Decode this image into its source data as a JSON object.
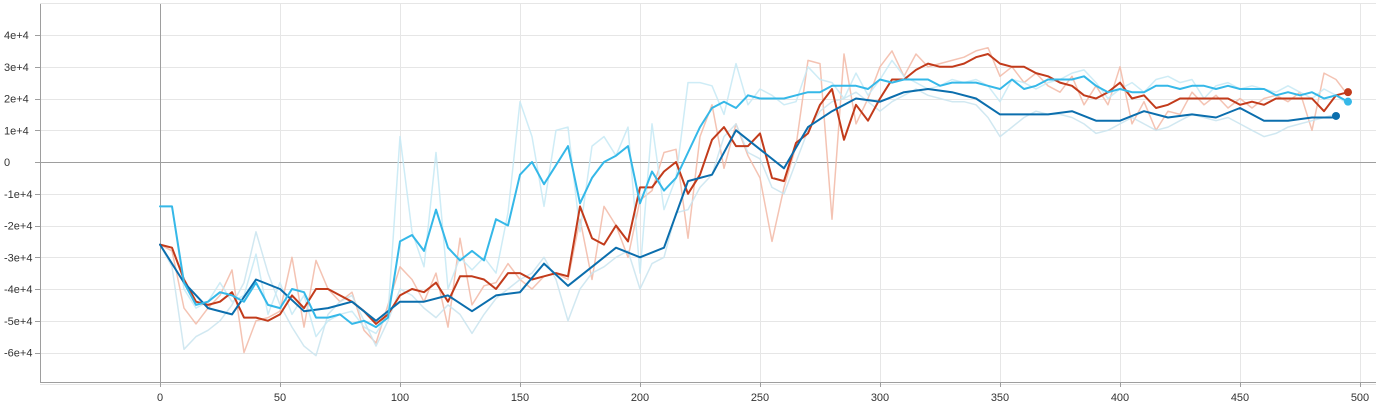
{
  "chart_data": {
    "type": "line",
    "xlim": [
      -50,
      508
    ],
    "ylim": [
      -70000,
      50000
    ],
    "grid": true,
    "legend": "none",
    "x_ticks": [
      0,
      50,
      100,
      150,
      200,
      250,
      300,
      350,
      400,
      450,
      500
    ],
    "x_tick_labels": [
      "0",
      "50",
      "100",
      "150",
      "200",
      "250",
      "300",
      "350",
      "400",
      "450",
      "500"
    ],
    "y_ticks": [
      40000,
      30000,
      20000,
      10000,
      0,
      -10000,
      -20000,
      -30000,
      -40000,
      -50000,
      -60000
    ],
    "y_tick_labels": [
      "4e+4",
      "3e+4",
      "2e+4",
      "1e+4",
      "0",
      "-1e+4",
      "-2e+4",
      "-3e+4",
      "-4e+4",
      "-5e+4",
      "-6e+4"
    ],
    "series": [
      {
        "color": "#f2b8a6",
        "role": "raw",
        "x": [
          0,
          5,
          10,
          15,
          20,
          25,
          30,
          35,
          40,
          45,
          50,
          55,
          60,
          65,
          70,
          75,
          80,
          85,
          90,
          95,
          100,
          105,
          110,
          115,
          120,
          125,
          130,
          135,
          140,
          145,
          150,
          155,
          160,
          165,
          170,
          175,
          180,
          185,
          190,
          195,
          200,
          205,
          210,
          215,
          220,
          225,
          230,
          235,
          240,
          245,
          250,
          255,
          260,
          265,
          270,
          275,
          280,
          285,
          290,
          295,
          300,
          305,
          310,
          315,
          320,
          325,
          330,
          335,
          340,
          345,
          350,
          355,
          360,
          365,
          370,
          375,
          380,
          385,
          390,
          395,
          400,
          405,
          410,
          415,
          420,
          425,
          430,
          435,
          440,
          445,
          450,
          455,
          460,
          465,
          470,
          475,
          480,
          485,
          490,
          495
        ],
        "y": [
          -26000,
          -28000,
          -46000,
          -51000,
          -46000,
          -42000,
          -34000,
          -60000,
          -50000,
          -49000,
          -47000,
          -30000,
          -52000,
          -31000,
          -40000,
          -44000,
          -41000,
          -53000,
          -57000,
          -45000,
          -33000,
          -37000,
          -44000,
          -35000,
          -52000,
          -24000,
          -45000,
          -39000,
          -38000,
          -32000,
          -37000,
          -40000,
          -36000,
          -35000,
          -37000,
          -18000,
          -37000,
          -14000,
          -20000,
          -30000,
          -12000,
          -9000,
          3000,
          4000,
          -24000,
          8000,
          18000,
          -2000,
          12000,
          2000,
          -5000,
          -25000,
          -8000,
          5000,
          32000,
          31000,
          -18000,
          34000,
          12000,
          20000,
          30000,
          35000,
          27000,
          34000,
          30000,
          31000,
          32000,
          33000,
          35000,
          36000,
          27000,
          30000,
          25000,
          28000,
          24000,
          22000,
          27000,
          18000,
          24000,
          18000,
          30000,
          12000,
          19000,
          10000,
          16000,
          15000,
          22000,
          18000,
          21000,
          17000,
          20000,
          17000,
          20000,
          21000,
          19000,
          22000,
          10000,
          28000,
          26000,
          21000
        ]
      },
      {
        "color": "#c9e4ef",
        "role": "raw",
        "x": [
          0,
          5,
          10,
          15,
          20,
          25,
          30,
          35,
          40,
          45,
          50,
          55,
          60,
          65,
          70,
          75,
          80,
          85,
          90,
          95,
          100,
          105,
          110,
          115,
          120,
          125,
          130,
          135,
          140,
          145,
          150,
          155,
          160,
          165,
          170,
          175,
          180,
          185,
          190,
          195,
          200,
          205,
          210,
          215,
          220,
          225,
          230,
          235,
          240,
          245,
          250,
          255,
          260,
          265,
          270,
          275,
          280,
          285,
          290,
          295,
          300,
          305,
          310,
          315,
          320,
          325,
          330,
          335,
          340,
          345,
          350,
          355,
          360,
          365,
          370,
          375,
          380,
          385,
          390,
          395,
          400,
          405,
          410,
          415,
          420,
          425,
          430,
          435,
          440,
          445,
          450,
          455,
          460,
          465,
          470,
          475,
          480,
          485,
          490
        ],
        "y": [
          -26000,
          -33000,
          -59000,
          -55000,
          -53000,
          -50000,
          -45000,
          -38000,
          -22000,
          -35000,
          -45000,
          -52000,
          -58000,
          -61000,
          -48000,
          -44000,
          -42000,
          -50000,
          -58000,
          -50000,
          -40000,
          -42000,
          -46000,
          -49000,
          -45000,
          -48000,
          -54000,
          -48000,
          -43000,
          -40000,
          -37000,
          -35000,
          -30000,
          -37000,
          -50000,
          -40000,
          -35000,
          -33000,
          -30000,
          -28000,
          -40000,
          -32000,
          -30000,
          -16000,
          -15000,
          -8000,
          -4000,
          8000,
          12000,
          3000,
          1000,
          -8000,
          -10000,
          0,
          10000,
          16000,
          19000,
          20000,
          22000,
          19000,
          16000,
          19000,
          21000,
          23000,
          21000,
          20000,
          19000,
          19000,
          18000,
          14000,
          8000,
          11000,
          14000,
          16000,
          15000,
          15000,
          14000,
          12000,
          9000,
          10000,
          12000,
          14000,
          12000,
          10000,
          11000,
          13000,
          15000,
          14000,
          13000,
          14000,
          12000,
          10000,
          8000,
          9000,
          11000,
          12000,
          13000,
          14000,
          15000
        ]
      },
      {
        "color": "#c6e9f5",
        "role": "raw",
        "x": [
          0,
          5,
          10,
          15,
          20,
          25,
          30,
          35,
          40,
          45,
          50,
          55,
          60,
          65,
          70,
          75,
          80,
          85,
          90,
          95,
          100,
          105,
          110,
          115,
          120,
          125,
          130,
          135,
          140,
          145,
          150,
          155,
          160,
          165,
          170,
          175,
          180,
          185,
          190,
          195,
          200,
          205,
          210,
          215,
          220,
          225,
          230,
          235,
          240,
          245,
          250,
          255,
          260,
          265,
          270,
          275,
          280,
          285,
          290,
          295,
          300,
          305,
          310,
          315,
          320,
          325,
          330,
          335,
          340,
          345,
          350,
          355,
          360,
          365,
          370,
          375,
          380,
          385,
          390,
          395,
          400,
          405,
          410,
          415,
          420,
          425,
          430,
          435,
          440,
          445,
          450,
          455,
          460,
          465,
          470,
          475,
          480,
          485,
          490,
          495
        ],
        "y": [
          -14000,
          -14000,
          -40000,
          -46000,
          -44000,
          -38000,
          -44000,
          -42000,
          -29000,
          -48000,
          -38000,
          -48000,
          -42000,
          -55000,
          -50000,
          -48000,
          -47000,
          -52000,
          -54000,
          -48000,
          8000,
          -22000,
          -33000,
          3000,
          -40000,
          -30000,
          -34000,
          -30000,
          -35000,
          -16000,
          19000,
          8000,
          -14000,
          10000,
          11000,
          -22000,
          5000,
          8000,
          2000,
          11000,
          -35000,
          12000,
          -15000,
          -5000,
          25000,
          25000,
          24000,
          15000,
          31000,
          18000,
          23000,
          21000,
          18000,
          19000,
          30000,
          26000,
          25000,
          20000,
          28000,
          21000,
          26000,
          32000,
          27000,
          25000,
          23000,
          24000,
          26000,
          25000,
          26000,
          24000,
          19000,
          26000,
          25000,
          23000,
          25000,
          26000,
          28000,
          29000,
          25000,
          20000,
          23000,
          25000,
          22000,
          26000,
          27000,
          25000,
          26000,
          20000,
          24000,
          25000,
          23000,
          24000,
          23000,
          22000,
          24000,
          22000,
          20000,
          23000,
          21000,
          18000
        ]
      },
      {
        "color": "#c23b1b",
        "role": "smoothed",
        "x": [
          0,
          5,
          10,
          15,
          20,
          25,
          30,
          35,
          40,
          45,
          50,
          55,
          60,
          65,
          70,
          75,
          80,
          85,
          90,
          95,
          100,
          105,
          110,
          115,
          120,
          125,
          130,
          135,
          140,
          145,
          150,
          155,
          160,
          165,
          170,
          175,
          180,
          185,
          190,
          195,
          200,
          205,
          210,
          215,
          220,
          225,
          230,
          235,
          240,
          245,
          250,
          255,
          260,
          265,
          270,
          275,
          280,
          285,
          290,
          295,
          300,
          305,
          310,
          315,
          320,
          325,
          330,
          335,
          340,
          345,
          350,
          355,
          360,
          365,
          370,
          375,
          380,
          385,
          390,
          395,
          400,
          405,
          410,
          415,
          420,
          425,
          430,
          435,
          440,
          445,
          450,
          455,
          460,
          465,
          470,
          475,
          480,
          485,
          490,
          495
        ],
        "y": [
          -26000,
          -27000,
          -37000,
          -44000,
          -45000,
          -44000,
          -41000,
          -49000,
          -49000,
          -50000,
          -48000,
          -42000,
          -46000,
          -40000,
          -40000,
          -42000,
          -44000,
          -47000,
          -51000,
          -48000,
          -42000,
          -40000,
          -41000,
          -38000,
          -44000,
          -36000,
          -36000,
          -37000,
          -40000,
          -35000,
          -35000,
          -37000,
          -36000,
          -35000,
          -36000,
          -14000,
          -24000,
          -26000,
          -20000,
          -25000,
          -8000,
          -8000,
          -3000,
          0,
          -10000,
          -4000,
          7000,
          11000,
          5000,
          5000,
          9000,
          -5000,
          -6000,
          6000,
          9000,
          18000,
          23000,
          7000,
          18000,
          13000,
          20000,
          26000,
          26000,
          29000,
          31000,
          30000,
          30000,
          31000,
          33000,
          34000,
          31000,
          30000,
          30000,
          28000,
          27000,
          25000,
          24000,
          21000,
          20000,
          22000,
          25000,
          20000,
          21000,
          17000,
          18000,
          20000,
          20000,
          20000,
          20000,
          20000,
          18000,
          19000,
          18000,
          20000,
          20000,
          20000,
          20000,
          16000,
          21000,
          22000
        ]
      },
      {
        "color": "#0b6ead",
        "role": "smoothed",
        "x": [
          0,
          10,
          20,
          30,
          40,
          50,
          60,
          70,
          80,
          90,
          100,
          110,
          120,
          130,
          140,
          150,
          160,
          170,
          180,
          190,
          200,
          210,
          220,
          230,
          240,
          250,
          260,
          270,
          280,
          290,
          300,
          310,
          320,
          330,
          340,
          350,
          360,
          370,
          380,
          390,
          400,
          410,
          420,
          430,
          440,
          450,
          460,
          470,
          480,
          490
        ],
        "y": [
          -26000,
          -38000,
          -46000,
          -48000,
          -37000,
          -40000,
          -47000,
          -46000,
          -44000,
          -50000,
          -44000,
          -44000,
          -42000,
          -47000,
          -42000,
          -41000,
          -32000,
          -39000,
          -33000,
          -27000,
          -30000,
          -27000,
          -6000,
          -4000,
          10000,
          4000,
          -2000,
          11000,
          16000,
          20000,
          19000,
          22000,
          23000,
          22000,
          20000,
          15000,
          15000,
          15000,
          16000,
          13000,
          13000,
          16000,
          14000,
          15000,
          14000,
          17000,
          13000,
          13000,
          14000,
          14000
        ]
      },
      {
        "color": "#35b8e8",
        "role": "smoothed",
        "x": [
          0,
          5,
          10,
          15,
          20,
          25,
          30,
          35,
          40,
          45,
          50,
          55,
          60,
          65,
          70,
          75,
          80,
          85,
          90,
          95,
          100,
          105,
          110,
          115,
          120,
          125,
          130,
          135,
          140,
          145,
          150,
          155,
          160,
          165,
          170,
          175,
          180,
          185,
          190,
          195,
          200,
          205,
          210,
          215,
          220,
          225,
          230,
          235,
          240,
          245,
          250,
          255,
          260,
          265,
          270,
          275,
          280,
          285,
          290,
          295,
          300,
          305,
          310,
          315,
          320,
          325,
          330,
          335,
          340,
          345,
          350,
          355,
          360,
          365,
          370,
          375,
          380,
          385,
          390,
          395,
          400,
          405,
          410,
          415,
          420,
          425,
          430,
          435,
          440,
          445,
          450,
          455,
          460,
          465,
          470,
          475,
          480,
          485,
          490,
          495
        ],
        "y": [
          -14000,
          -14000,
          -38000,
          -45000,
          -44000,
          -41000,
          -42000,
          -44000,
          -38000,
          -45000,
          -46000,
          -40000,
          -41000,
          -49000,
          -49000,
          -48000,
          -51000,
          -50000,
          -52000,
          -49000,
          -25000,
          -23000,
          -28000,
          -15000,
          -27000,
          -31000,
          -28000,
          -31000,
          -18000,
          -20000,
          -4000,
          0,
          -7000,
          -1000,
          5000,
          -13000,
          -5000,
          0,
          2000,
          5000,
          -13000,
          -3000,
          -9000,
          -5000,
          3000,
          11000,
          17000,
          19000,
          17000,
          21000,
          20000,
          20000,
          20000,
          21000,
          22000,
          22000,
          24000,
          24000,
          24000,
          23000,
          26000,
          25000,
          26000,
          26000,
          26000,
          24000,
          25000,
          25000,
          25000,
          24000,
          23000,
          26000,
          23000,
          24000,
          26000,
          26000,
          26000,
          27000,
          24000,
          22000,
          23000,
          22000,
          22000,
          24000,
          24000,
          23000,
          24000,
          24000,
          23000,
          24000,
          23000,
          23000,
          23000,
          21000,
          22000,
          21000,
          22000,
          20000,
          21000,
          19000
        ]
      }
    ],
    "end_markers": [
      {
        "x": 495,
        "y": 22000,
        "color": "#c23b1b"
      },
      {
        "x": 495,
        "y": 19000,
        "color": "#35b8e8"
      },
      {
        "x": 490,
        "y": 14500,
        "color": "#0b6ead"
      }
    ]
  }
}
